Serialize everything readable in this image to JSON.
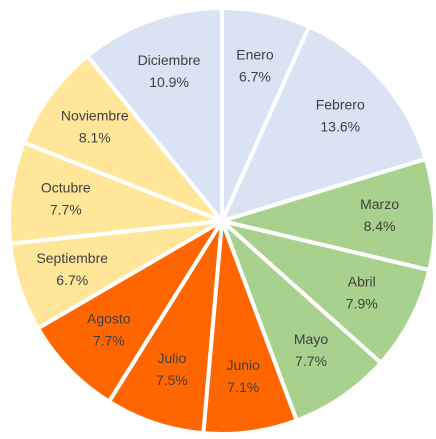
{
  "chart_data": {
    "type": "pie",
    "categories": [
      "Enero",
      "Febrero",
      "Marzo",
      "Abril",
      "Mayo",
      "Junio",
      "Julio",
      "Agosto",
      "Septiembre",
      "Octubre",
      "Noviembre",
      "Diciembre"
    ],
    "values": [
      6.7,
      13.6,
      8.4,
      7.9,
      7.7,
      7.1,
      7.5,
      7.7,
      6.7,
      7.7,
      8.1,
      10.9
    ],
    "value_labels": [
      "6.7%",
      "13.6%",
      "8.4%",
      "7.9%",
      "7.7%",
      "7.1%",
      "7.5%",
      "7.7%",
      "6.7%",
      "7.7%",
      "8.1%",
      "10.9%"
    ],
    "colors": [
      "#dae3f3",
      "#dae3f3",
      "#a9d18e",
      "#a9d18e",
      "#a9d18e",
      "#ff6600",
      "#ff6600",
      "#ff6600",
      "#ffe699",
      "#ffe699",
      "#ffe699",
      "#dae3f3"
    ]
  }
}
